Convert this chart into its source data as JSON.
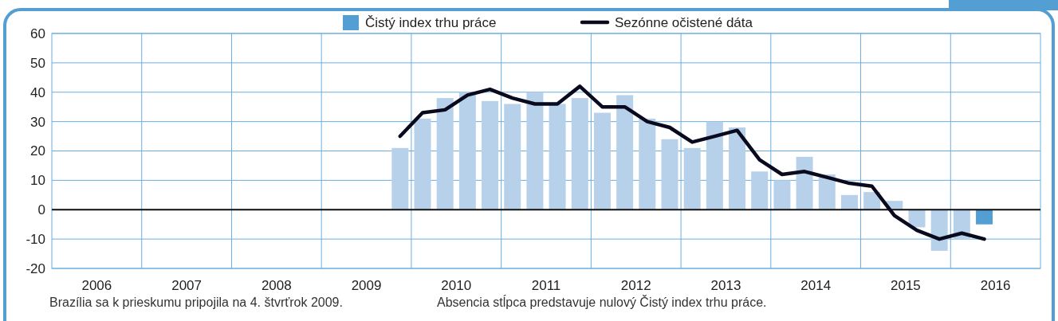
{
  "chart_data": {
    "type": "bar",
    "x": [
      2009.875,
      2010.125,
      2010.375,
      2010.625,
      2010.875,
      2011.125,
      2011.375,
      2011.625,
      2011.875,
      2012.125,
      2012.375,
      2012.625,
      2012.875,
      2013.125,
      2013.375,
      2013.625,
      2013.875,
      2014.125,
      2014.375,
      2014.625,
      2014.875,
      2015.125,
      2015.375,
      2015.625,
      2015.875,
      2016.125,
      2016.375
    ],
    "series": [
      {
        "name": "Čistý index trhu práce",
        "color": "#539fd3",
        "colors": [
          "#b8d1ea",
          "#b8d1ea",
          "#b8d1ea",
          "#b8d1ea",
          "#b8d1ea",
          "#b8d1ea",
          "#b8d1ea",
          "#b8d1ea",
          "#b8d1ea",
          "#b8d1ea",
          "#b8d1ea",
          "#b8d1ea",
          "#b8d1ea",
          "#b8d1ea",
          "#b8d1ea",
          "#b8d1ea",
          "#b8d1ea",
          "#b8d1ea",
          "#b8d1ea",
          "#b8d1ea",
          "#b8d1ea",
          "#b8d1ea",
          "#b8d1ea",
          "#b8d1ea",
          "#b8d1ea",
          "#b8d1ea",
          "#539fd3"
        ],
        "values": [
          21,
          31,
          38,
          40,
          37,
          36,
          40,
          36,
          38,
          33,
          39,
          31,
          24,
          21,
          30,
          28,
          13,
          10,
          18,
          12,
          5,
          6,
          3,
          -6,
          -14,
          -10,
          -5
        ]
      },
      {
        "name": "Sezónne očistené dáta",
        "type": "line",
        "color": "#0a0a1e",
        "values": [
          25,
          33,
          34,
          39,
          41,
          38,
          36,
          36,
          42,
          35,
          35,
          30,
          28,
          23,
          25,
          27,
          17,
          12,
          13,
          11,
          9,
          8,
          -2,
          -7,
          -10,
          -8,
          -10
        ]
      }
    ],
    "xlim": [
      2006,
      2017
    ],
    "xticks": [
      {
        "value": 2006.5,
        "label": "2006"
      },
      {
        "value": 2007,
        "label": null
      },
      {
        "value": 2007.5,
        "label": "2007"
      },
      {
        "value": 2008,
        "label": null
      },
      {
        "value": 2008.5,
        "label": "2008"
      },
      {
        "value": 2009,
        "label": null
      },
      {
        "value": 2009.5,
        "label": "2009"
      },
      {
        "value": 2010,
        "label": null
      },
      {
        "value": 2010.5,
        "label": "2010"
      },
      {
        "value": 2011,
        "label": null
      },
      {
        "value": 2011.5,
        "label": "2011"
      },
      {
        "value": 2012,
        "label": null
      },
      {
        "value": 2012.5,
        "label": "2012"
      },
      {
        "value": 2013,
        "label": null
      },
      {
        "value": 2013.5,
        "label": "2013"
      },
      {
        "value": 2014,
        "label": null
      },
      {
        "value": 2014.5,
        "label": "2014"
      },
      {
        "value": 2015,
        "label": null
      },
      {
        "value": 2015.5,
        "label": "2015"
      },
      {
        "value": 2016,
        "label": null
      },
      {
        "value": 2016.5,
        "label": "2016"
      }
    ],
    "ylim": [
      -20,
      60
    ],
    "yticks": [
      -20,
      -10,
      0,
      10,
      20,
      30,
      40,
      50,
      60
    ],
    "grid": true,
    "legend": "top",
    "annotations": [
      "Brazília sa k prieskumu pripojila na 4. štvrťrok 2009.",
      "Absencia stĺpca predstavuje nulový Čistý index trhu práce."
    ]
  }
}
